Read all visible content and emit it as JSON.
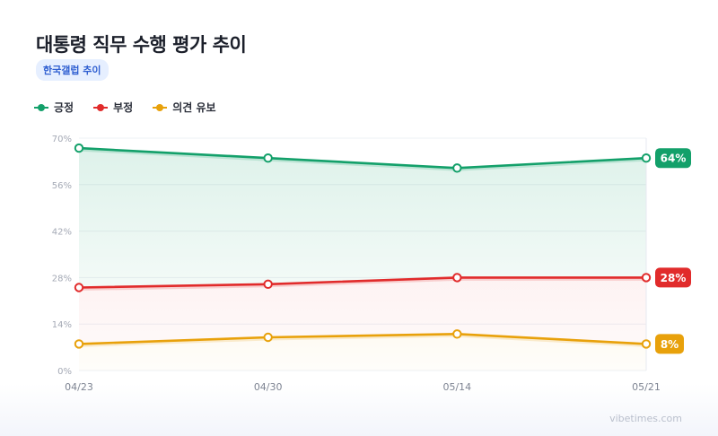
{
  "title": "대통령 직무 수행 평가 추이",
  "subtitle": "한국갤럽 추이",
  "watermark": "vibetimes.com",
  "chart_data": {
    "type": "line",
    "categories": [
      "04/23",
      "04/30",
      "05/14",
      "05/21"
    ],
    "ylim": [
      0,
      70
    ],
    "yticks": [
      0,
      14,
      28,
      42,
      56,
      70
    ],
    "yticklabels": [
      "0%",
      "14%",
      "28%",
      "42%",
      "56%",
      "70%"
    ],
    "legend_position": "top-left",
    "grid": true,
    "series": [
      {
        "name": "긍정",
        "values": [
          67,
          64,
          61,
          64
        ],
        "color": "#13a06a",
        "end_label": "64%"
      },
      {
        "name": "부정",
        "values": [
          25,
          26,
          28,
          28
        ],
        "color": "#e12b2b",
        "end_label": "28%"
      },
      {
        "name": "의견 유보",
        "values": [
          8,
          10,
          11,
          8
        ],
        "color": "#e8a10b",
        "end_label": "8%"
      }
    ]
  }
}
